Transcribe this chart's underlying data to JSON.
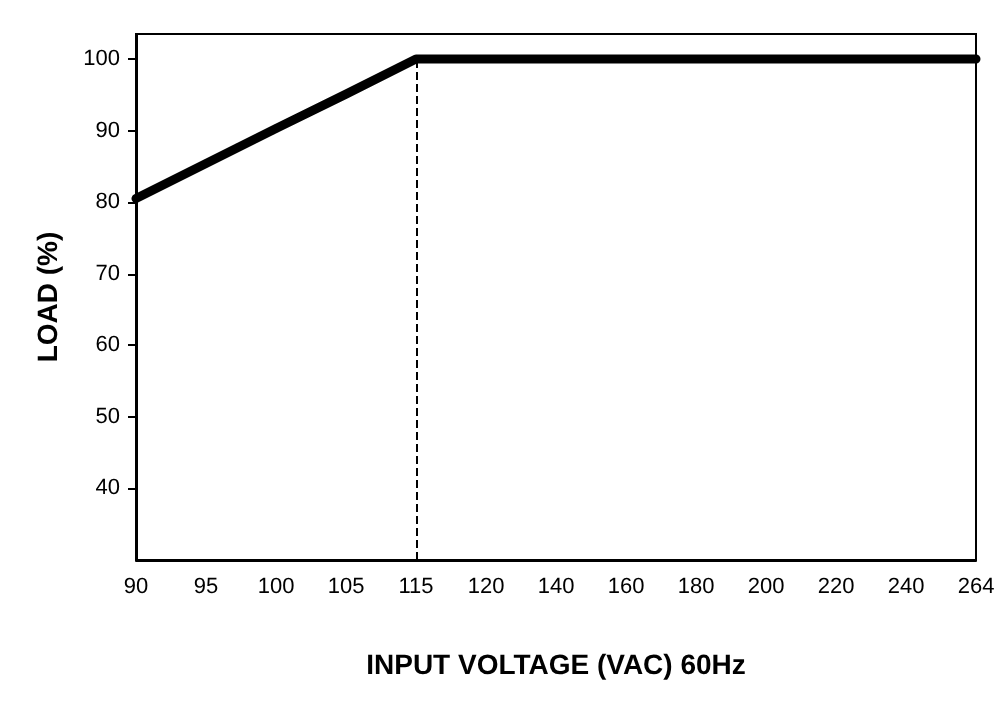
{
  "chart_data": {
    "type": "line",
    "xlabel": "INPUT VOLTAGE (VAC) 60Hz",
    "ylabel": "LOAD (%)",
    "categories": [
      "90",
      "95",
      "100",
      "105",
      "115",
      "120",
      "140",
      "160",
      "180",
      "200",
      "220",
      "240",
      "264"
    ],
    "series": [
      {
        "color": "#000000",
        "values": [
          80.5,
          85.4,
          90.3,
          95.1,
          100,
          100,
          100,
          100,
          100,
          100,
          100,
          100,
          100
        ]
      }
    ],
    "ylim": [
      30,
      103.5
    ],
    "yticks": [
      40,
      50,
      60,
      70,
      80,
      90,
      100
    ],
    "ref_lines": [
      {
        "axis": "x",
        "value": "115",
        "color": "#000000",
        "line_style": "dashed"
      }
    ],
    "grid": false,
    "marker": "none",
    "line_style": "solid"
  }
}
